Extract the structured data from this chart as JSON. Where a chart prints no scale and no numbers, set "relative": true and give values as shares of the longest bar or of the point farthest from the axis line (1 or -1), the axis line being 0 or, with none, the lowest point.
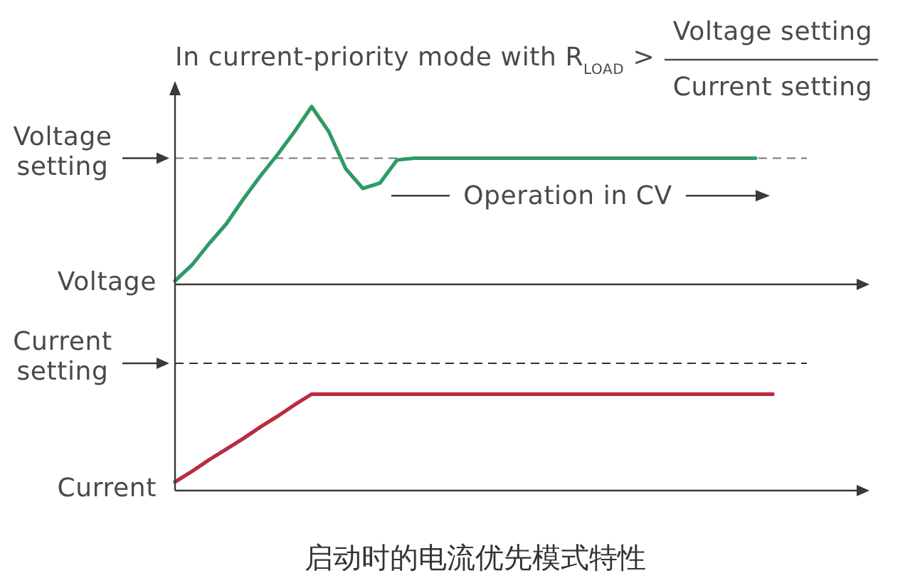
{
  "chart_data": [
    {
      "type": "line",
      "relative": true,
      "title": "In current-priority mode with R$_{LOAD}$ >\nVoltage setting\nCurrent setting",
      "ylabel": "Voltage",
      "categories": [
        null,
        null,
        null,
        null,
        null,
        null,
        null,
        null,
        null,
        null,
        null,
        null,
        null,
        null,
        null,
        null,
        null,
        null,
        null,
        null,
        null,
        null,
        null,
        null,
        null,
        null,
        null,
        null,
        null,
        null,
        null,
        null,
        null,
        null,
        null,
        null,
        null,
        null,
        null,
        null,
        null
      ],
      "series": [
        {
          "color": "#2e9a66",
          "values": [
            0.02,
            0.11,
            0.23,
            0.34,
            0.48,
            0.61,
            0.73,
            0.86,
            1,
            0.86,
            0.65,
            0.54,
            0.57,
            0.7,
            0.71,
            0.71,
            0.71,
            0.71,
            0.71,
            0.71,
            0.71,
            0.71,
            0.71,
            0.71,
            0.71,
            0.71,
            0.71,
            0.71,
            0.71,
            0.71,
            0.71,
            0.71,
            0.71,
            0.71,
            0.71,
            null,
            null,
            null,
            null,
            null,
            null
          ]
        }
      ],
      "ref_lines": [
        {
          "axis": "y",
          "value": 0.71,
          "label": "Voltage setting",
          "color": "#777777",
          "line_style": "dashed"
        }
      ],
      "annotations": [
        "Operation in CV"
      ]
    },
    {
      "type": "line",
      "relative": true,
      "ylabel": "Current",
      "categories": [
        null,
        null,
        null,
        null,
        null,
        null,
        null,
        null,
        null,
        null,
        null,
        null,
        null,
        null,
        null,
        null,
        null,
        null,
        null,
        null,
        null,
        null,
        null,
        null,
        null,
        null,
        null,
        null,
        null,
        null,
        null,
        null,
        null,
        null,
        null,
        null,
        null,
        null,
        null,
        null,
        null
      ],
      "series": [
        {
          "color": "#b82c40",
          "values": [
            0.09,
            0.2,
            0.32,
            0.43,
            0.54,
            0.66,
            0.77,
            0.89,
            1,
            1,
            1,
            1,
            1,
            1,
            1,
            1,
            1,
            1,
            1,
            1,
            1,
            1,
            1,
            1,
            1,
            1,
            1,
            1,
            1,
            1,
            1,
            1,
            1,
            1,
            1,
            1,
            null,
            null,
            null,
            null,
            null
          ]
        }
      ],
      "ref_lines": [
        {
          "axis": "y",
          "value": 1.32,
          "label": "Current setting",
          "color": "#333333",
          "line_style": "dashed"
        }
      ],
      "annotations": [
        "启动时的电流优先模式特性"
      ]
    }
  ]
}
